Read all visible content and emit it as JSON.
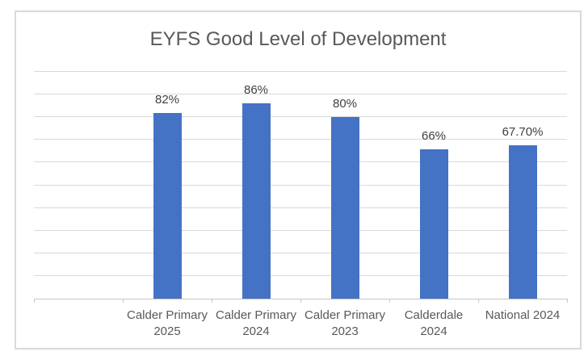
{
  "chart_data": {
    "type": "bar",
    "title": "EYFS Good Level of Development",
    "categories": [
      {
        "label": "Calder Primary 2025",
        "lines": [
          "Calder Primary",
          "2025"
        ]
      },
      {
        "label": "Calder Primary 2024",
        "lines": [
          "Calder Primary",
          "2024"
        ]
      },
      {
        "label": "Calder Primary 2023",
        "lines": [
          "Calder Primary",
          "2023"
        ]
      },
      {
        "label": "Calderdale 2024",
        "lines": [
          "Calderdale",
          "2024"
        ]
      },
      {
        "label": "National 2024",
        "lines": [
          "National 2024"
        ]
      }
    ],
    "values": [
      82,
      86,
      80,
      66,
      67.7
    ],
    "data_labels": [
      "82%",
      "86%",
      "80%",
      "66%",
      "67.70%"
    ],
    "xlabel": "",
    "ylabel": "",
    "ylim": [
      0,
      100
    ],
    "gridline_step": 10,
    "grid": "horizontal",
    "legend": "none",
    "y_axis_labels_visible": false,
    "leading_empty_category_slots": 1,
    "colors": {
      "bar": "#4472C4",
      "gridline": "#D9D9D9",
      "axis_line": "#C6C6C6",
      "frame_border": "#D9D9D9",
      "title_text": "#595959",
      "data_label_text": "#404040",
      "category_label_text": "#595959",
      "background": "#FFFFFF"
    }
  }
}
